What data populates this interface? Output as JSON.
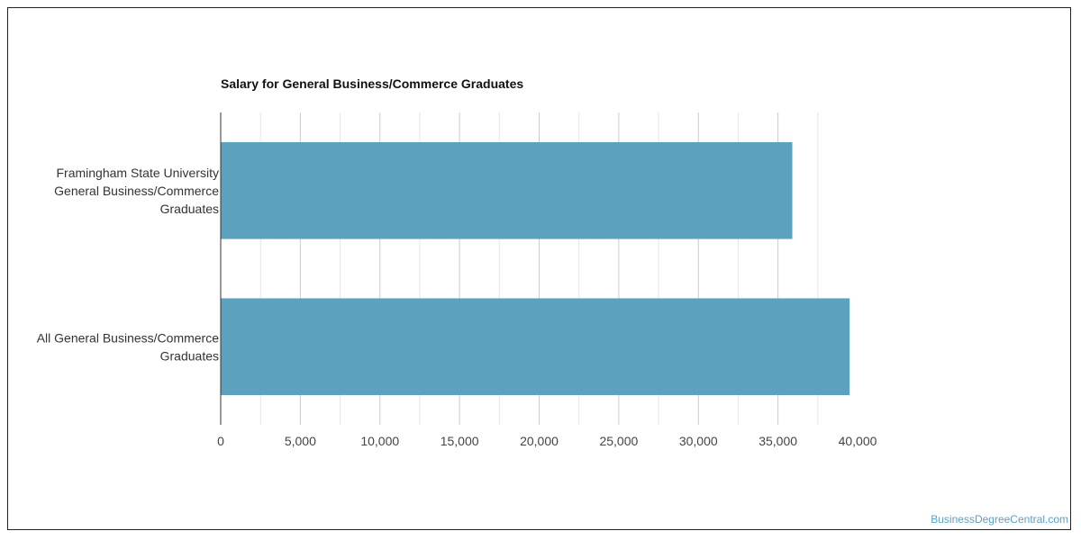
{
  "chart_data": {
    "type": "bar",
    "orientation": "horizontal",
    "title": "Salary for General Business/Commerce Graduates",
    "xlabel": "",
    "ylabel": "",
    "categories": [
      [
        "Framingham State University",
        "General Business/Commerce",
        "Graduates"
      ],
      [
        "All General Business/Commerce",
        "Graduates"
      ]
    ],
    "values": [
      35900,
      39500
    ],
    "xlim": [
      0,
      40000
    ],
    "ticks": [
      "0",
      "5,000",
      "10,000",
      "15,000",
      "20,000",
      "25,000",
      "30,000",
      "35,000",
      "40,000"
    ],
    "tick_values": [
      0,
      5000,
      10000,
      15000,
      20000,
      25000,
      30000,
      35000,
      40000
    ],
    "grid": true,
    "bar_color": "#5ca1be"
  },
  "footer": {
    "watermark": "BusinessDegreeCentral.com"
  }
}
